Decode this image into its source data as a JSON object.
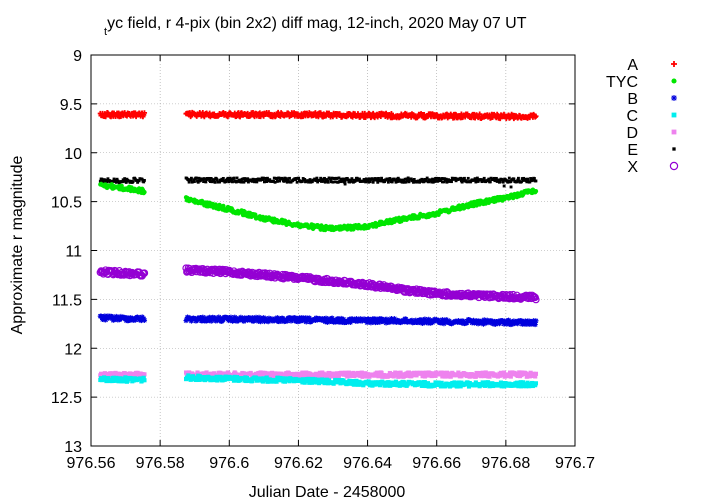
{
  "chart_data": {
    "type": "scatter",
    "title_sub": "t",
    "title_main": "yc field, r 4-pix (bin 2x2) diff mag, 12-inch, 2020 May 07 UT",
    "xlabel": "Julian Date - 2458000",
    "ylabel": "Approximate r magnitude",
    "xlim": [
      976.56,
      976.7
    ],
    "ylim": [
      9,
      13
    ],
    "y_inverted": true,
    "grid": true,
    "legend_placement": "right",
    "xticks": [
      "976.56",
      "976.58",
      "976.6",
      "976.62",
      "976.64",
      "976.66",
      "976.68",
      "976.7"
    ],
    "yticks": [
      "9",
      "9.5",
      "10",
      "10.5",
      "11",
      "11.5",
      "12",
      "12.5",
      "13"
    ],
    "segments": [
      [
        976.5627,
        976.5755
      ],
      [
        976.5875,
        976.6888
      ]
    ],
    "series": [
      {
        "name": "A",
        "marker": "plus",
        "color": "#ff0000",
        "points": [
          [
            976.563,
            9.61
          ],
          [
            976.575,
            9.61
          ],
          [
            976.588,
            9.61
          ],
          [
            976.62,
            9.61
          ],
          [
            976.65,
            9.62
          ],
          [
            976.689,
            9.63
          ]
        ]
      },
      {
        "name": "TYC",
        "marker": "filled-circle",
        "color": "#00e600",
        "points": [
          [
            976.563,
            10.33
          ],
          [
            976.575,
            10.39
          ],
          [
            976.588,
            10.48
          ],
          [
            976.6,
            10.58
          ],
          [
            976.61,
            10.67
          ],
          [
            976.62,
            10.74
          ],
          [
            976.63,
            10.78
          ],
          [
            976.64,
            10.75
          ],
          [
            976.65,
            10.68
          ],
          [
            976.66,
            10.62
          ],
          [
            976.67,
            10.53
          ],
          [
            976.68,
            10.46
          ],
          [
            976.689,
            10.38
          ]
        ]
      },
      {
        "name": "B",
        "marker": "star",
        "color": "#0000dd",
        "points": [
          [
            976.563,
            11.69
          ],
          [
            976.575,
            11.7
          ],
          [
            976.588,
            11.7
          ],
          [
            976.62,
            11.71
          ],
          [
            976.65,
            11.72
          ],
          [
            976.689,
            11.74
          ]
        ]
      },
      {
        "name": "C",
        "marker": "filled-square",
        "color": "#00eeee",
        "points": [
          [
            976.563,
            12.32
          ],
          [
            976.575,
            12.32
          ],
          [
            976.588,
            12.3
          ],
          [
            976.62,
            12.33
          ],
          [
            976.64,
            12.36
          ],
          [
            976.66,
            12.37
          ],
          [
            976.689,
            12.37
          ]
        ]
      },
      {
        "name": "D",
        "marker": "filled-square",
        "color": "#ee82ee",
        "points": [
          [
            976.563,
            12.27
          ],
          [
            976.575,
            12.27
          ],
          [
            976.588,
            12.27
          ],
          [
            976.689,
            12.27
          ]
        ]
      },
      {
        "name": "E",
        "marker": "dot",
        "color": "#000000",
        "points": [
          [
            976.563,
            10.29
          ],
          [
            976.575,
            10.28
          ],
          [
            976.588,
            10.28
          ],
          [
            976.689,
            10.28
          ]
        ]
      },
      {
        "name": "X",
        "marker": "open-circle",
        "color": "#9400d3",
        "points": [
          [
            976.563,
            11.22
          ],
          [
            976.575,
            11.24
          ],
          [
            976.588,
            11.2
          ],
          [
            976.6,
            11.22
          ],
          [
            976.62,
            11.28
          ],
          [
            976.64,
            11.35
          ],
          [
            976.65,
            11.4
          ],
          [
            976.66,
            11.44
          ],
          [
            976.67,
            11.46
          ],
          [
            976.689,
            11.48
          ]
        ]
      }
    ],
    "outliers": [
      {
        "series": "E",
        "points": [
          [
            976.6335,
            10.32
          ],
          [
            976.6795,
            10.34
          ],
          [
            976.6815,
            10.35
          ]
        ]
      }
    ]
  }
}
